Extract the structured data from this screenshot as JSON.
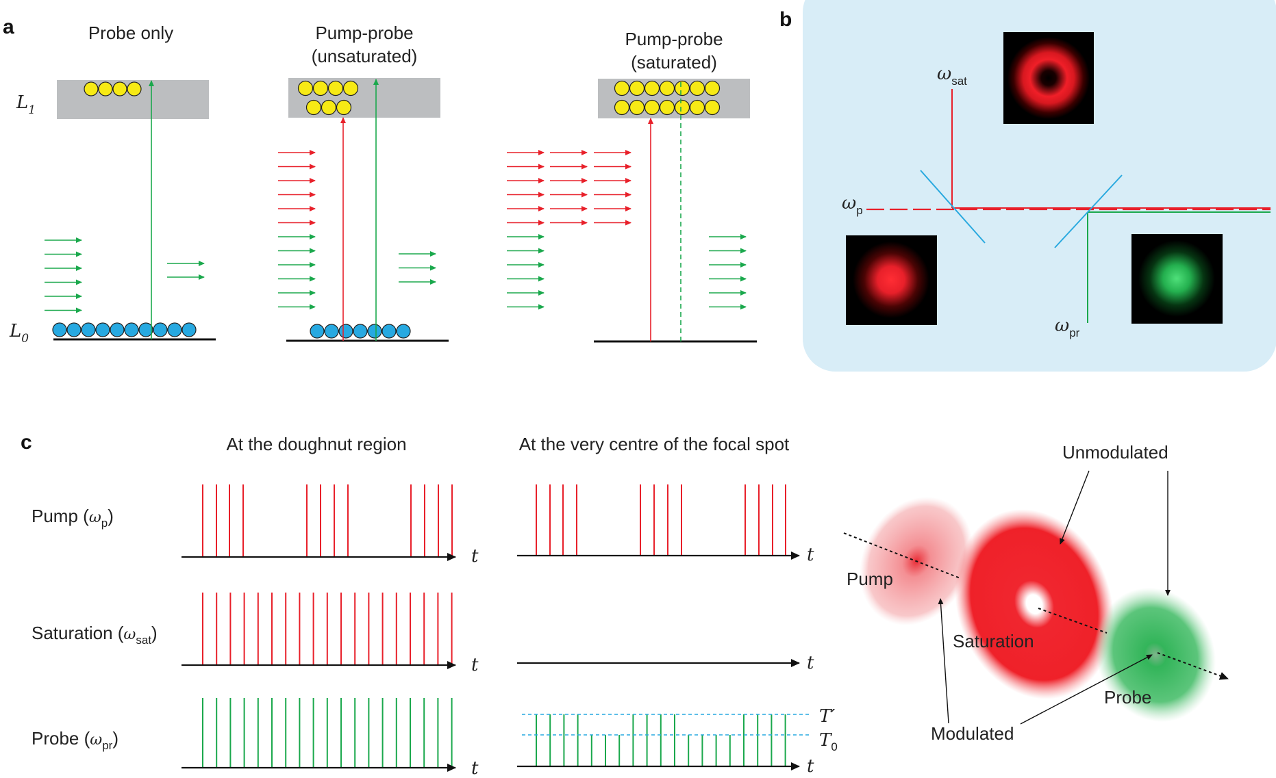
{
  "panel_labels": {
    "a": "a",
    "b": "b",
    "c": "c"
  },
  "panel_a": {
    "titles": {
      "probe_only": "Probe only",
      "unsat_line1": "Pump-probe",
      "unsat_line2": "(unsaturated)",
      "sat_line1": "Pump-probe",
      "sat_line2": "(saturated)"
    },
    "levels": {
      "upper_letter": "L",
      "upper_sub": "1",
      "lower_letter": "L",
      "lower_sub": "0"
    },
    "counts": {
      "probe_only": {
        "excited": 4,
        "ground": 10
      },
      "unsaturated": {
        "excited": 7,
        "ground": 7
      },
      "saturated": {
        "excited": 14,
        "ground": 0
      }
    }
  },
  "panel_b": {
    "w_sat": {
      "symbol": "ω",
      "sub": "sat"
    },
    "w_p": {
      "symbol": "ω",
      "sub": "p"
    },
    "w_pr": {
      "symbol": "ω",
      "sub": "pr"
    }
  },
  "panel_c": {
    "col1_title": "At the doughnut region",
    "col2_title": "At the very centre of the focal spot",
    "rows": {
      "pump": {
        "text": "Pump (",
        "symbol": "ω",
        "sub": "p",
        "close": ")"
      },
      "saturation": {
        "text": "Saturation (",
        "symbol": "ω",
        "sub": "sat",
        "close": ")"
      },
      "probe": {
        "text": "Probe (",
        "symbol": "ω",
        "sub": "pr",
        "close": ")"
      }
    },
    "axis_t": "t",
    "thresholds": {
      "t_prime": "T′",
      "t0_letter": "T",
      "t0_sub": "0"
    },
    "spots": {
      "pump": "Pump",
      "saturation": "Saturation",
      "probe": "Probe",
      "unmodulated": "Unmodulated",
      "modulated": "Modulated"
    }
  },
  "colors": {
    "red": "#e8202a",
    "green": "#1aa84c",
    "yellow": "#f7ea15",
    "blue": "#27a9e1",
    "gray": "#bcbec0",
    "panel_b_bg": "#d8edf7",
    "mirror": "#29a9df",
    "dashed_cyan": "#27a9e1"
  }
}
